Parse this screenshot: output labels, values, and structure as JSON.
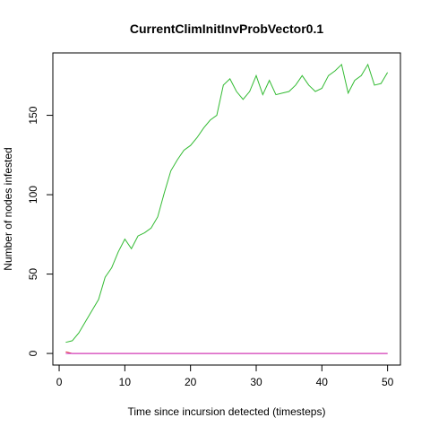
{
  "chart_data": {
    "type": "line",
    "title": "CurrentClimInitInvProbVector0.1",
    "xlabel": "Time since incursion detected (timesteps)",
    "ylabel": "Number of nodes infested",
    "xlim": [
      -0.96,
      51.96
    ],
    "ylim": [
      -7.3,
      189.3
    ],
    "x_ticks": [
      0,
      10,
      20,
      30,
      40,
      50
    ],
    "y_ticks": [
      0,
      50,
      100,
      150
    ],
    "grid": false,
    "legend": "none",
    "series": [
      {
        "color": "#33bb33",
        "x": [
          1,
          2,
          3,
          4,
          5,
          6,
          7,
          8,
          9,
          10,
          11,
          12,
          13,
          14,
          15,
          16,
          17,
          18,
          19,
          20,
          21,
          22,
          23,
          24,
          25,
          26,
          27,
          28,
          29,
          30,
          31,
          32,
          33,
          34,
          35,
          36,
          37,
          38,
          39,
          40,
          41,
          42,
          43,
          44,
          45,
          46,
          47,
          48,
          49,
          50
        ],
        "y": [
          7,
          8,
          13,
          20,
          27,
          34,
          48,
          54,
          64,
          72,
          66,
          74,
          76,
          79,
          86,
          101,
          115,
          122,
          128,
          131,
          136,
          142,
          147,
          150,
          169,
          173,
          165,
          160,
          165,
          175,
          163,
          172,
          163,
          164,
          165,
          169,
          175,
          169,
          165,
          167,
          175,
          178,
          182,
          164,
          172,
          175,
          182,
          169,
          170,
          177
        ]
      },
      {
        "color": "#dd2222",
        "x": [
          1,
          2,
          3,
          4,
          5,
          6,
          7,
          8,
          9,
          10,
          11,
          12,
          13,
          14,
          15,
          16,
          17,
          18,
          19,
          20,
          21,
          22,
          23,
          24,
          25,
          26,
          27,
          28,
          29,
          30,
          31,
          32,
          33,
          34,
          35,
          36,
          37,
          38,
          39,
          40,
          41,
          42,
          43,
          44,
          45,
          46,
          47,
          48,
          49,
          50
        ],
        "y": [
          1,
          0,
          0,
          0,
          0,
          0,
          0,
          0,
          0,
          0,
          0,
          0,
          0,
          0,
          0,
          0,
          0,
          0,
          0,
          0,
          0,
          0,
          0,
          0,
          0,
          0,
          0,
          0,
          0,
          0,
          0,
          0,
          0,
          0,
          0,
          0,
          0,
          0,
          0,
          0,
          0,
          0,
          0,
          0,
          0,
          0,
          0,
          0,
          0,
          0
        ]
      },
      {
        "color": "#cc33cc",
        "x": [
          1,
          2,
          3,
          4,
          5,
          6,
          7,
          8,
          9,
          10,
          11,
          12,
          13,
          14,
          15,
          16,
          17,
          18,
          19,
          20,
          21,
          22,
          23,
          24,
          25,
          26,
          27,
          28,
          29,
          30,
          31,
          32,
          33,
          34,
          35,
          36,
          37,
          38,
          39,
          40,
          41,
          42,
          43,
          44,
          45,
          46,
          47,
          48,
          49,
          50
        ],
        "y": [
          0,
          0,
          0,
          0,
          0,
          0,
          0,
          0,
          0,
          0,
          0,
          0,
          0,
          0,
          0,
          0,
          0,
          0,
          0,
          0,
          0,
          0,
          0,
          0,
          0,
          0,
          0,
          0,
          0,
          0,
          0,
          0,
          0,
          0,
          0,
          0,
          0,
          0,
          0,
          0,
          0,
          0,
          0,
          0,
          0,
          0,
          0,
          0,
          0,
          0
        ]
      }
    ]
  }
}
